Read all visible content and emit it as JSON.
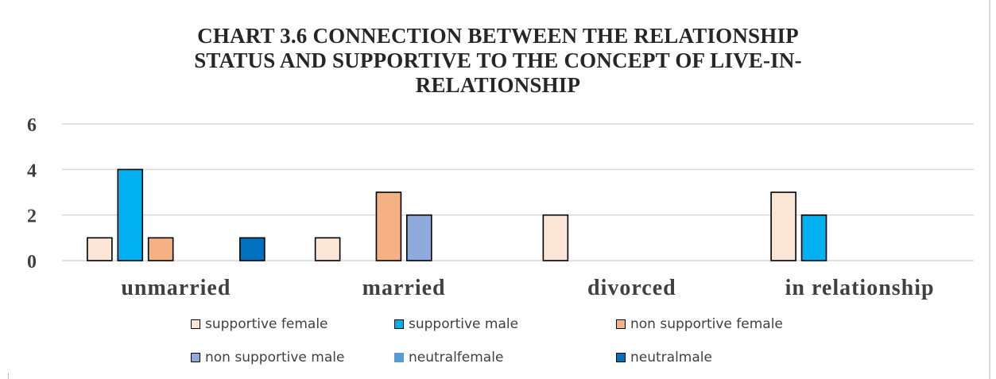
{
  "chart_data": {
    "type": "bar",
    "title_lines": [
      "CHART 3.6 CONNECTION BETWEEN THE RELATIONSHIP",
      "STATUS AND SUPPORTIVE TO THE CONCEPT OF LIVE-IN-",
      "RELATIONSHIP"
    ],
    "categories": [
      "unmarried",
      "married",
      "divorced",
      "in relationship"
    ],
    "series": [
      {
        "name": "supportive female",
        "color": "#FBE5D6",
        "values": [
          1,
          1,
          2,
          3
        ]
      },
      {
        "name": "supportive male",
        "color": "#00B0F0",
        "values": [
          4,
          0,
          0,
          2
        ]
      },
      {
        "name": "non supportive female",
        "color": "#F4B183",
        "values": [
          1,
          3,
          0,
          0
        ]
      },
      {
        "name": "non supportive male",
        "color": "#8FAADC",
        "values": [
          0,
          2,
          0,
          0
        ]
      },
      {
        "name": "neutralfemale",
        "color": "#5B9BD5",
        "values": [
          0,
          0,
          0,
          0
        ]
      },
      {
        "name": "neutralmale",
        "color": "#0070C0",
        "values": [
          1,
          0,
          0,
          0
        ]
      }
    ],
    "yticks": [
      "0",
      "2",
      "4",
      "6"
    ],
    "ylim": [
      0,
      6
    ],
    "grid": true,
    "legend_position": "bottom"
  }
}
